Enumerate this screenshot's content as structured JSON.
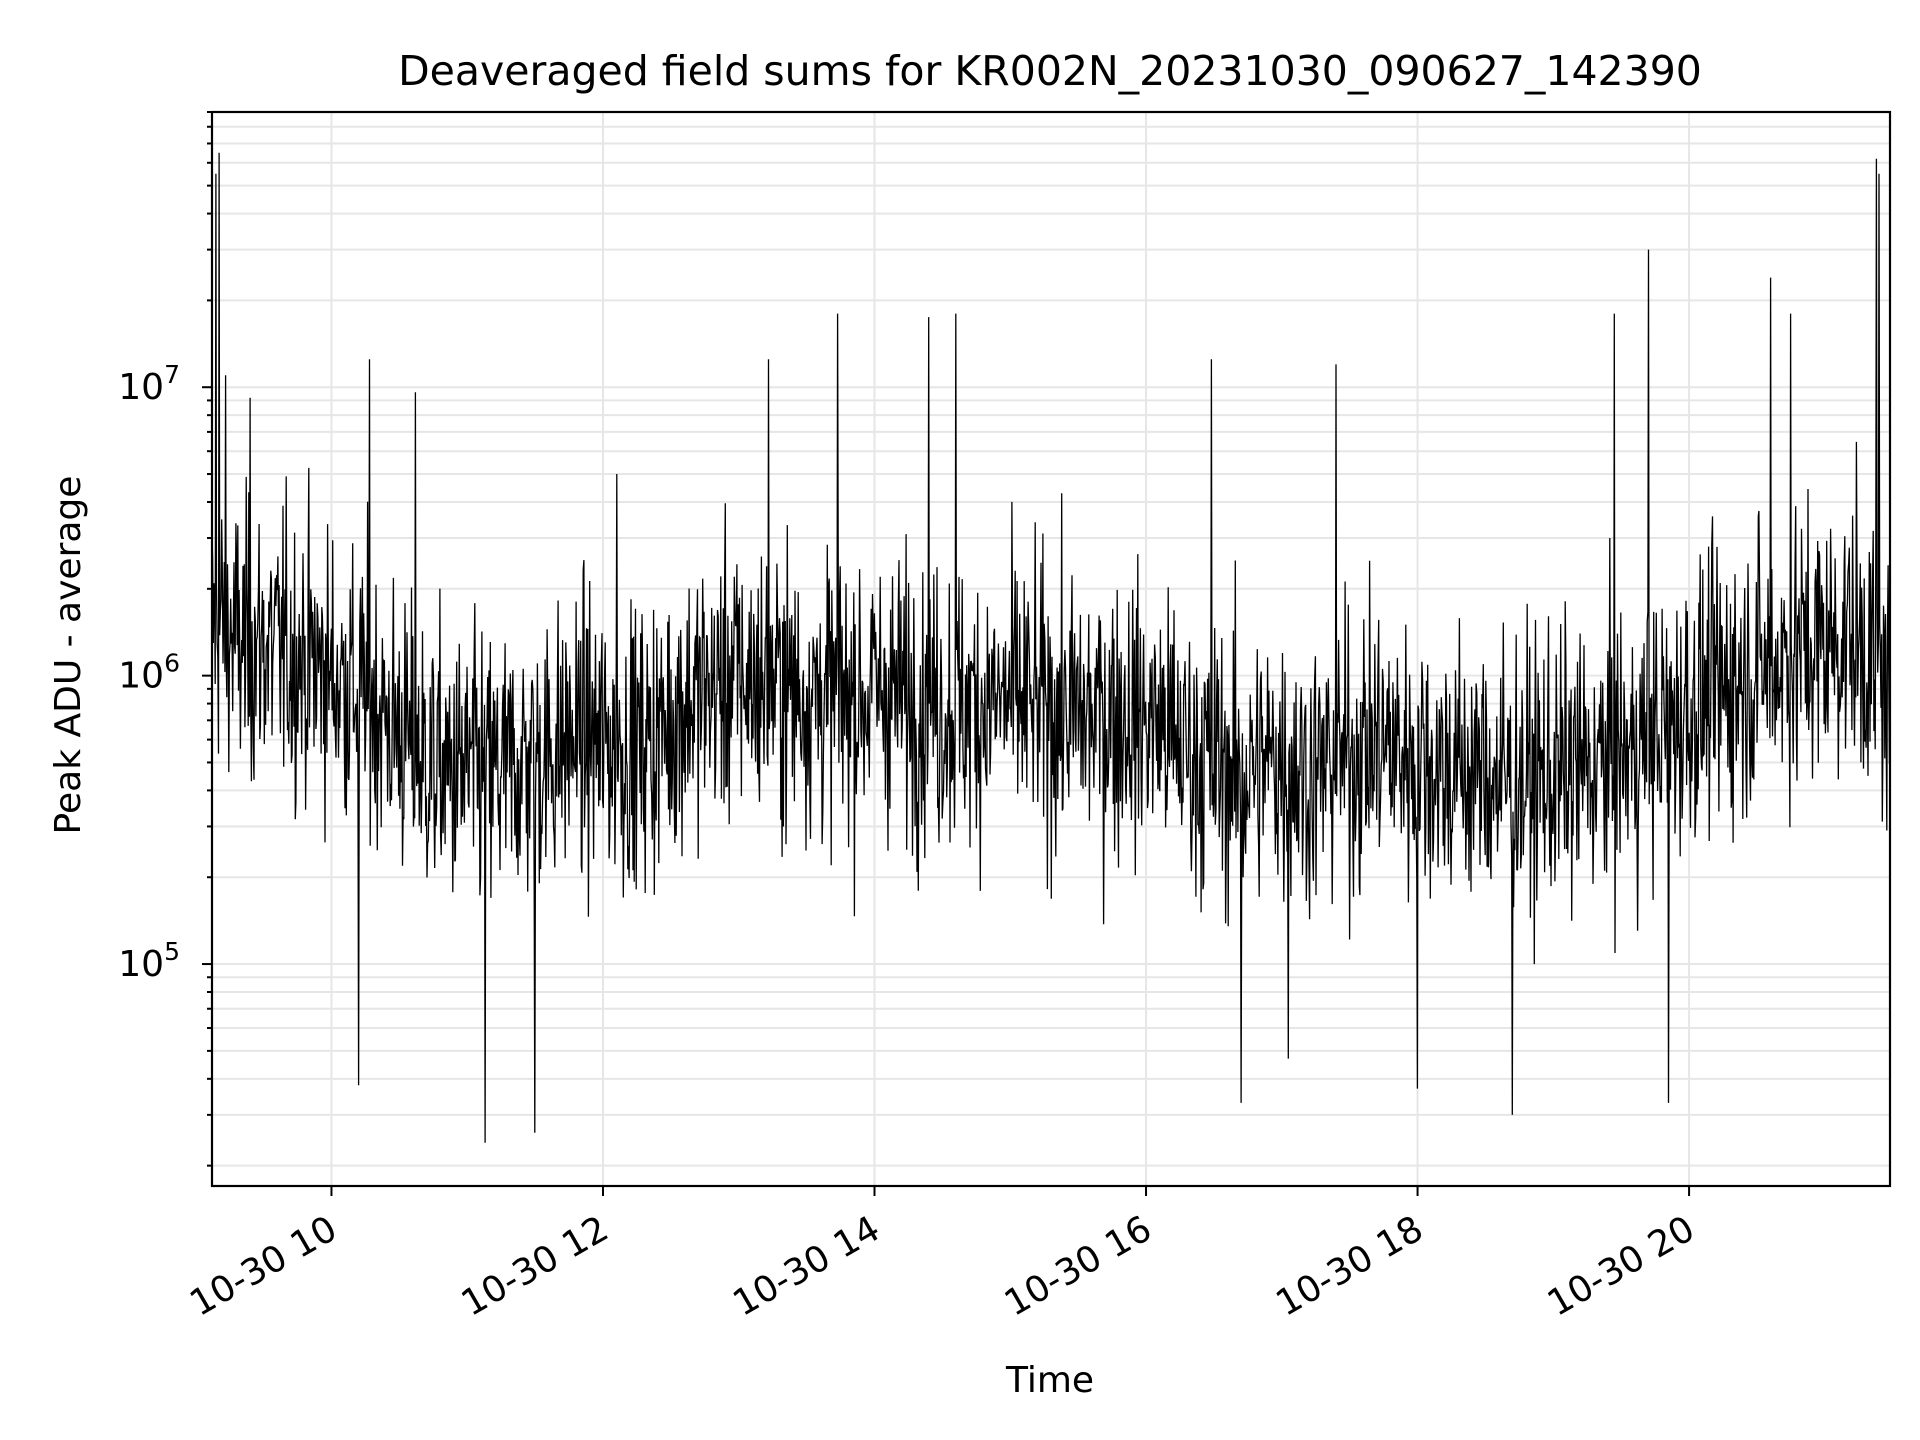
{
  "chart_data": {
    "type": "line",
    "title": "Deaveraged field sums for KR002N_20231030_090627_142390",
    "xlabel": "Time",
    "ylabel": "Peak ADU - average",
    "yscale": "log",
    "grid": true,
    "series_color": "#000000",
    "grid_color": "#e6e6e6",
    "xlim_hours": [
      9.12,
      21.48
    ],
    "ylim": [
      17000,
      90000000
    ],
    "x_ticks": [
      {
        "hour": 10,
        "label": "10-30 10"
      },
      {
        "hour": 12,
        "label": "10-30 12"
      },
      {
        "hour": 14,
        "label": "10-30 14"
      },
      {
        "hour": 16,
        "label": "10-30 16"
      },
      {
        "hour": 18,
        "label": "10-30 18"
      },
      {
        "hour": 20,
        "label": "10-30 20"
      }
    ],
    "y_ticks": [
      {
        "value": 100000,
        "base": "10",
        "exp": "5"
      },
      {
        "value": 1000000,
        "base": "10",
        "exp": "6"
      },
      {
        "value": 10000000,
        "base": "10",
        "exp": "7"
      }
    ],
    "series": [
      {
        "x_hours": [
          9.12,
          9.16,
          9.2,
          9.25,
          9.3,
          9.35,
          9.4,
          9.45,
          9.5,
          9.55,
          9.6,
          9.65,
          9.7,
          9.75,
          9.8,
          9.85,
          9.9,
          9.95,
          10.0,
          10.1,
          10.2,
          10.3,
          10.4,
          10.5,
          10.6,
          10.7,
          10.8,
          10.9,
          11.0,
          11.1,
          11.2,
          11.3,
          11.4,
          11.5,
          11.6,
          11.7,
          11.8,
          11.9,
          12.0,
          12.1,
          12.2,
          12.3,
          12.4,
          12.5,
          12.6,
          12.7,
          12.8,
          12.9,
          13.0,
          13.1,
          13.2,
          13.3,
          13.4,
          13.5,
          13.6,
          13.7,
          13.8,
          13.9,
          14.0,
          14.1,
          14.2,
          14.3,
          14.4,
          14.5,
          14.6,
          14.7,
          14.8,
          14.9,
          15.0,
          15.1,
          15.2,
          15.3,
          15.4,
          15.5,
          15.6,
          15.7,
          15.8,
          15.9,
          16.0,
          16.1,
          16.2,
          16.3,
          16.4,
          16.5,
          16.6,
          16.7,
          16.8,
          16.9,
          17.0,
          17.1,
          17.2,
          17.3,
          17.4,
          17.5,
          17.6,
          17.7,
          17.8,
          17.9,
          18.0,
          18.1,
          18.2,
          18.3,
          18.4,
          18.5,
          18.6,
          18.7,
          18.8,
          18.9,
          19.0,
          19.1,
          19.2,
          19.3,
          19.4,
          19.5,
          19.6,
          19.7,
          19.8,
          19.9,
          20.0,
          20.1,
          20.2,
          20.3,
          20.4,
          20.5,
          20.6,
          20.7,
          20.8,
          20.9,
          21.0,
          21.1,
          21.2,
          21.25,
          21.3,
          21.35,
          21.4,
          21.45,
          21.48
        ],
        "y_median": [
          1500000,
          1600000,
          1500000,
          1400000,
          1300000,
          1250000,
          1300000,
          1200000,
          1300000,
          1250000,
          1200000,
          1250000,
          1150000,
          1200000,
          1100000,
          1150000,
          1050000,
          1100000,
          1000000,
          950000,
          900000,
          850000,
          700000,
          650000,
          550000,
          500000,
          480000,
          450000,
          470000,
          460000,
          450000,
          470000,
          500000,
          520000,
          540000,
          580000,
          620000,
          600000,
          580000,
          560000,
          560000,
          580000,
          620000,
          700000,
          800000,
          850000,
          900000,
          950000,
          1000000,
          950000,
          950000,
          920000,
          900000,
          870000,
          860000,
          850000,
          850000,
          850000,
          880000,
          900000,
          850000,
          820000,
          800000,
          780000,
          750000,
          780000,
          800000,
          800000,
          820000,
          800000,
          780000,
          760000,
          740000,
          720000,
          720000,
          740000,
          750000,
          720000,
          700000,
          680000,
          600000,
          550000,
          520000,
          500000,
          480000,
          450000,
          470000,
          500000,
          520000,
          480000,
          450000,
          470000,
          500000,
          520000,
          560000,
          580000,
          560000,
          540000,
          520000,
          500000,
          480000,
          470000,
          460000,
          450000,
          440000,
          430000,
          430000,
          440000,
          450000,
          460000,
          470000,
          480000,
          500000,
          520000,
          560000,
          600000,
          650000,
          700000,
          760000,
          820000,
          880000,
          950000,
          1000000,
          1050000,
          1100000,
          1150000,
          1200000,
          1250000,
          1300000,
          1350000,
          1400000,
          1300000,
          1200000,
          1100000,
          1000000,
          900000,
          800000
        ],
        "y_spread_decades": 0.62,
        "spikes": [
          {
            "hour": 9.15,
            "value": 55000000
          },
          {
            "hour": 9.17,
            "value": 65000000
          },
          {
            "hour": 9.22,
            "value": 11000000
          },
          {
            "hour": 9.4,
            "value": 9200000
          },
          {
            "hour": 10.28,
            "value": 12500000
          },
          {
            "hour": 10.62,
            "value": 9600000
          },
          {
            "hour": 11.13,
            "value": 24000
          },
          {
            "hour": 11.5,
            "value": 26000
          },
          {
            "hour": 10.2,
            "value": 38000
          },
          {
            "hour": 12.1,
            "value": 5000000
          },
          {
            "hour": 13.22,
            "value": 12500000
          },
          {
            "hour": 13.73,
            "value": 18000000
          },
          {
            "hour": 14.4,
            "value": 17500000
          },
          {
            "hour": 14.6,
            "value": 18000000
          },
          {
            "hour": 16.48,
            "value": 12500000
          },
          {
            "hour": 16.7,
            "value": 33000
          },
          {
            "hour": 17.05,
            "value": 47000
          },
          {
            "hour": 17.4,
            "value": 12000000
          },
          {
            "hour": 18.0,
            "value": 37000
          },
          {
            "hour": 18.7,
            "value": 30000
          },
          {
            "hour": 19.45,
            "value": 18000000
          },
          {
            "hour": 19.7,
            "value": 30000000
          },
          {
            "hour": 19.85,
            "value": 33000
          },
          {
            "hour": 20.6,
            "value": 24000000
          },
          {
            "hour": 20.75,
            "value": 18000000
          },
          {
            "hour": 21.38,
            "value": 62000000
          },
          {
            "hour": 21.4,
            "value": 55000000
          }
        ]
      }
    ]
  }
}
